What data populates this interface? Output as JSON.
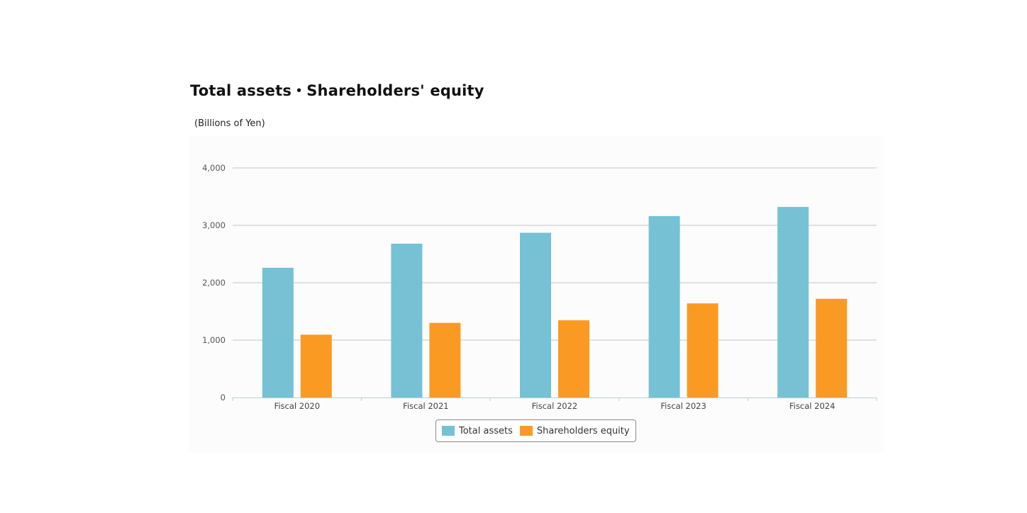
{
  "page": {
    "title": "Total assets・Shareholders' equity",
    "unit_label": "(Billions of Yen)"
  },
  "chart_data": {
    "type": "bar",
    "title": "Total assets・Shareholders' equity",
    "ylabel": "(Billions of Yen)",
    "xlabel": "",
    "categories": [
      "Fiscal 2020",
      "Fiscal 2021",
      "Fiscal 2022",
      "Fiscal 2023",
      "Fiscal 2024"
    ],
    "series": [
      {
        "name": "Total assets",
        "color": "#76c1d4",
        "values": [
          2260,
          2680,
          2870,
          3160,
          3320
        ]
      },
      {
        "name": "Shareholders equity",
        "color": "#fb9a22",
        "values": [
          1095,
          1300,
          1345,
          1640,
          1720
        ]
      }
    ],
    "ylim": [
      0,
      4000
    ],
    "yticks": [
      0,
      1000,
      2000,
      3000,
      4000
    ],
    "ytick_labels": [
      "0",
      "1,000",
      "2,000",
      "3,000",
      "4,000"
    ],
    "grid": true,
    "legend_position": "bottom-center"
  }
}
